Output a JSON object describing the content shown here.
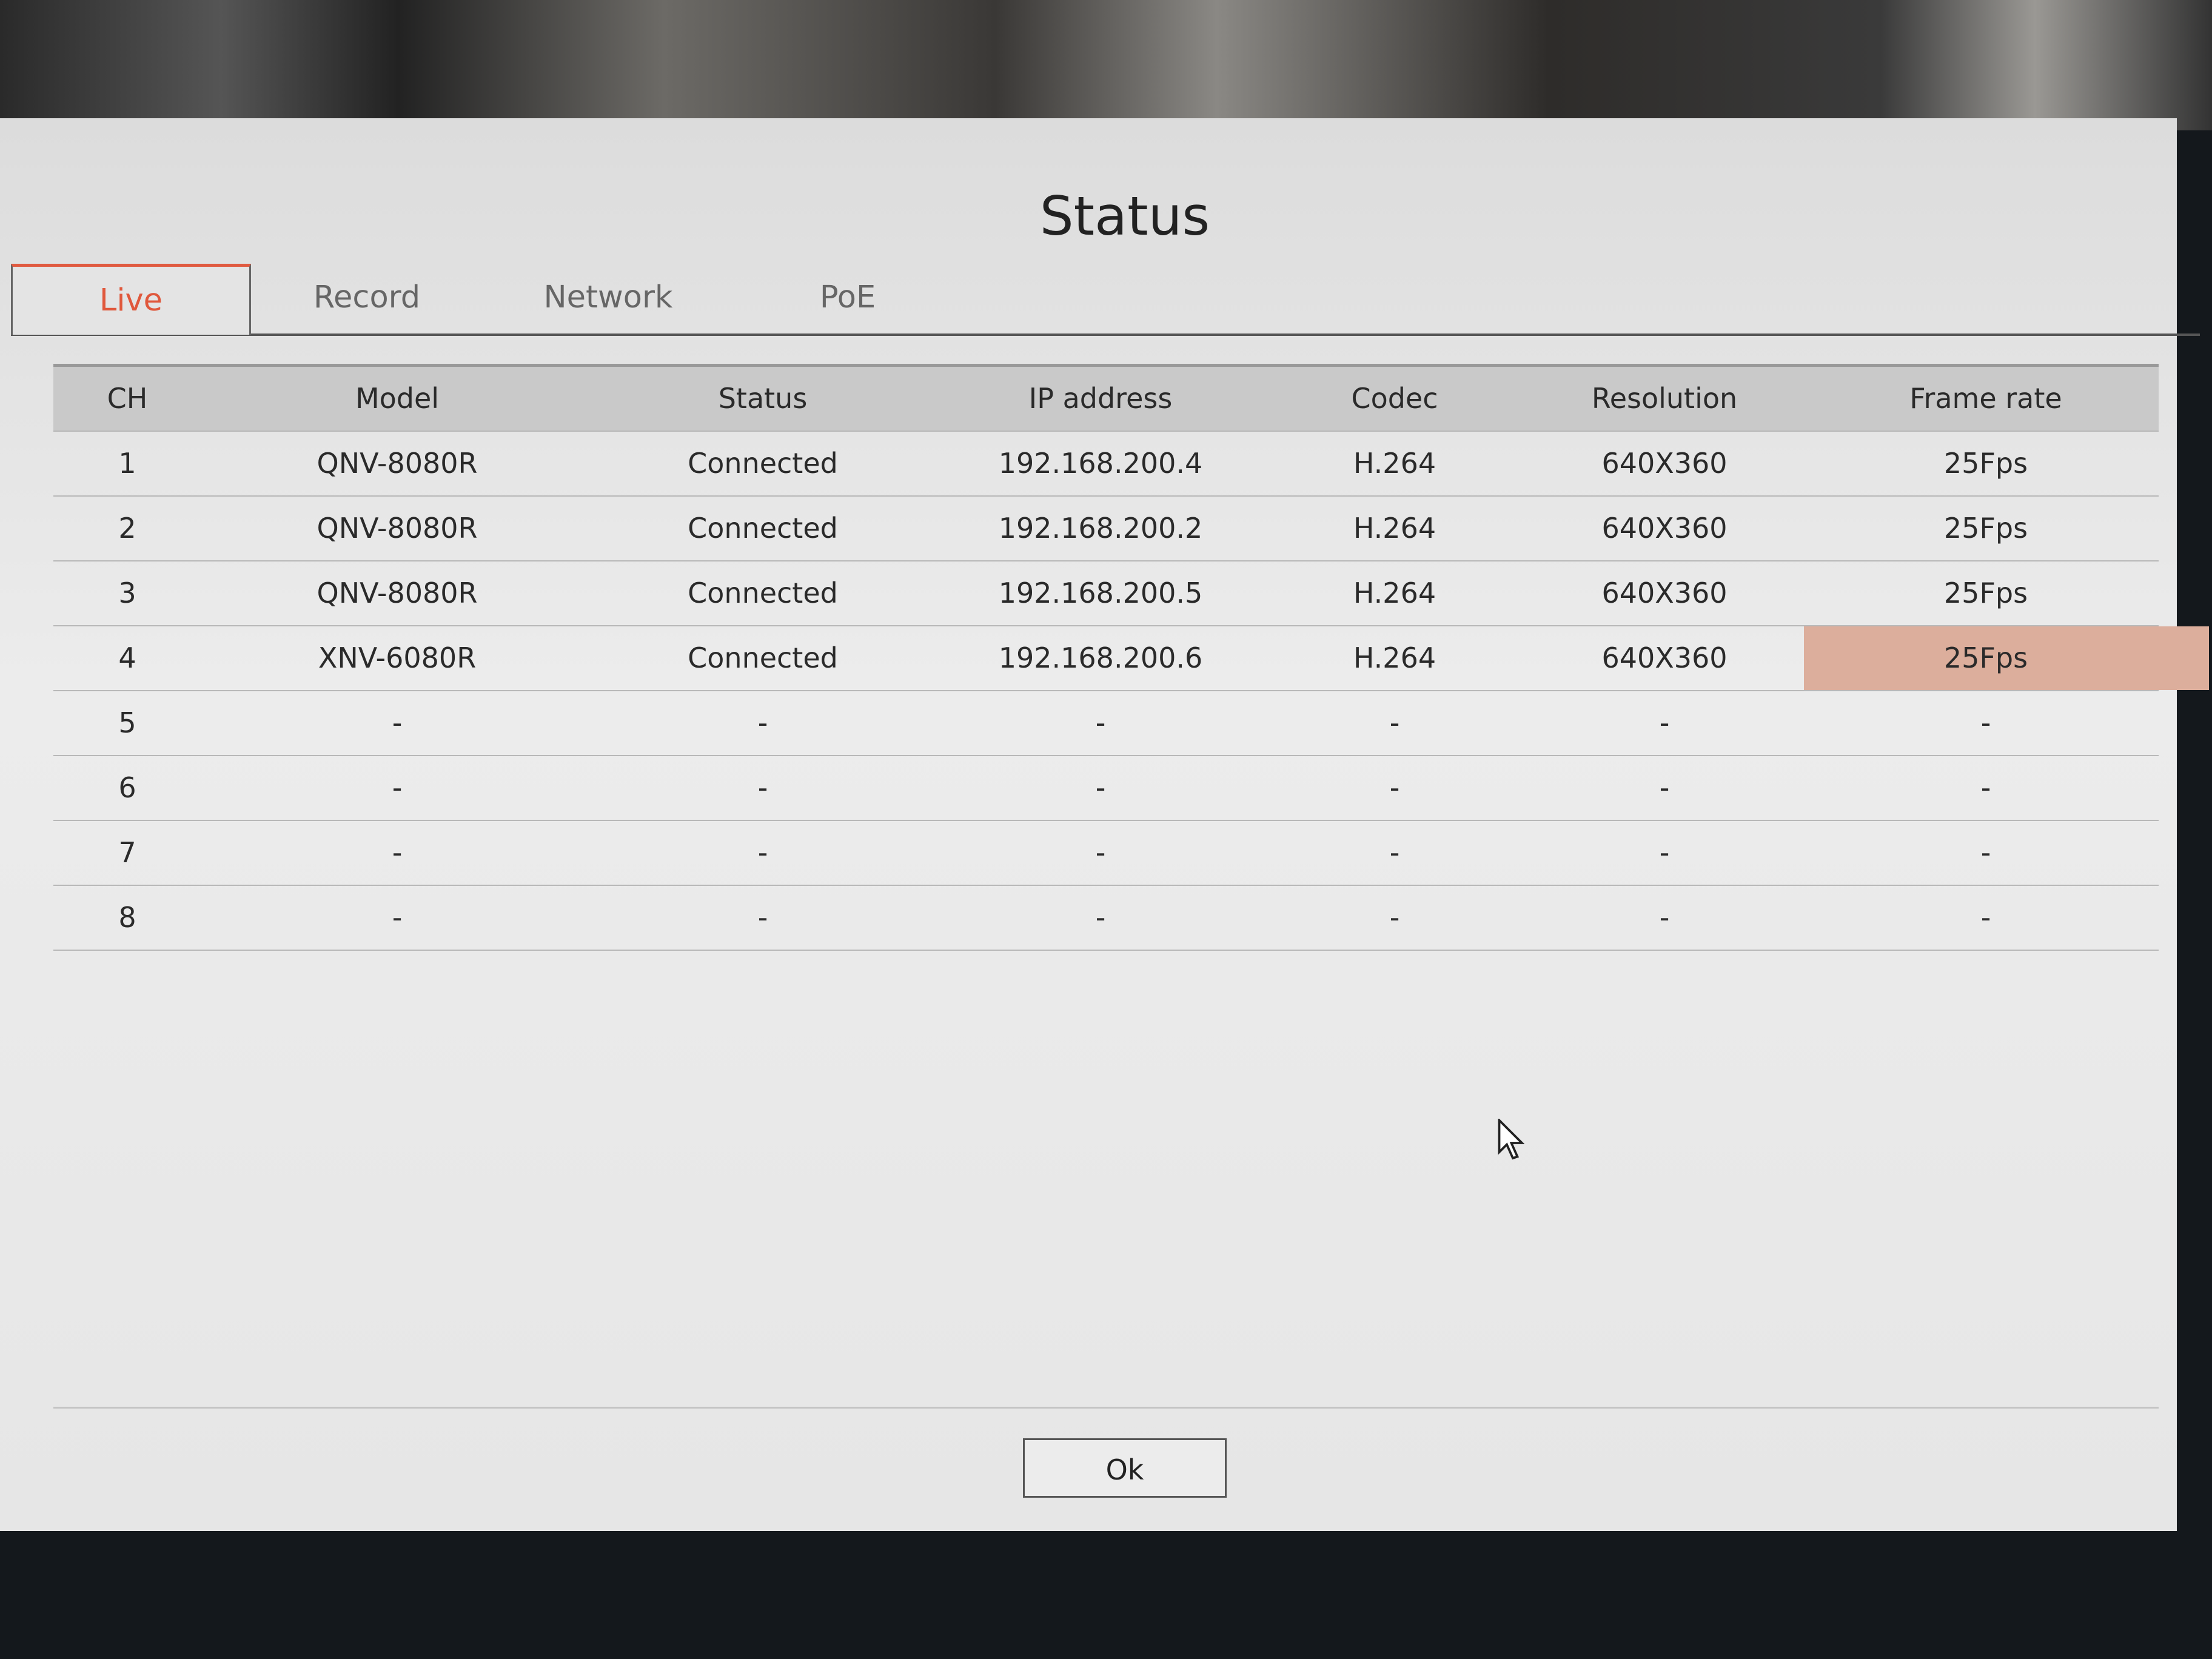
{
  "dialog": {
    "title": "Status",
    "ok_label": "Ok"
  },
  "tabs": [
    {
      "label": "Live",
      "active": true
    },
    {
      "label": "Record"
    },
    {
      "label": "Network"
    },
    {
      "label": "PoE"
    }
  ],
  "table": {
    "headers": [
      "CH",
      "Model",
      "Status",
      "IP address",
      "Codec",
      "Resolution",
      "Frame rate"
    ],
    "rows": [
      [
        "1",
        "QNV-8080R",
        "Connected",
        "192.168.200.4",
        "H.264",
        "640X360",
        "25Fps"
      ],
      [
        "2",
        "QNV-8080R",
        "Connected",
        "192.168.200.2",
        "H.264",
        "640X360",
        "25Fps"
      ],
      [
        "3",
        "QNV-8080R",
        "Connected",
        "192.168.200.5",
        "H.264",
        "640X360",
        "25Fps"
      ],
      [
        "4",
        "XNV-6080R",
        "Connected",
        "192.168.200.6",
        "H.264",
        "640X360",
        "25Fps"
      ],
      [
        "5",
        "-",
        "-",
        "-",
        "-",
        "-",
        "-"
      ],
      [
        "6",
        "-",
        "-",
        "-",
        "-",
        "-",
        "-"
      ],
      [
        "7",
        "-",
        "-",
        "-",
        "-",
        "-",
        "-"
      ],
      [
        "8",
        "-",
        "-",
        "-",
        "-",
        "-",
        "-"
      ]
    ]
  },
  "colors": {
    "accent": "#e0583c",
    "highlight": "#dcae9c"
  }
}
